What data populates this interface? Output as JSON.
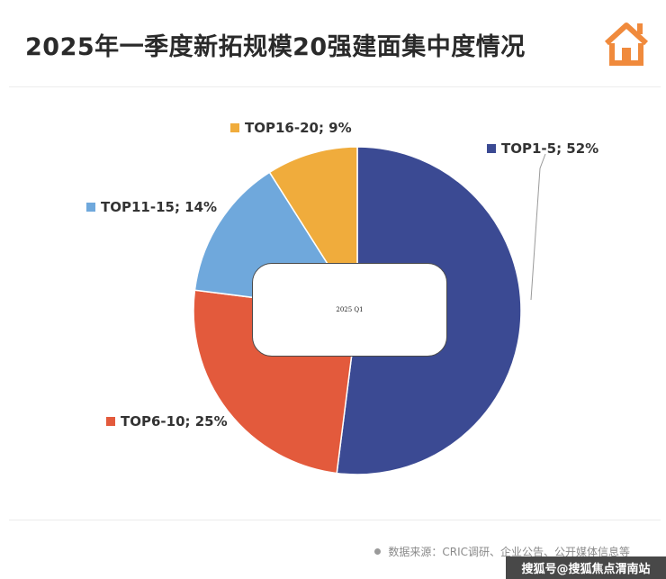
{
  "page": {
    "title": "2025年一季度新拓规模20强建面集中度情况",
    "footer": "数据来源：CRIC调研、企业公告、公开媒体信息等",
    "watermark": "搜狐号@搜狐焦点渭南站"
  },
  "colors": {
    "logo": "#f08a3c"
  },
  "chart_data": {
    "type": "pie",
    "title": "",
    "center_label": "2025 Q1",
    "unit": "%",
    "slices": [
      {
        "name": "TOP1-5",
        "value": 52,
        "label": "TOP1-5; 52%",
        "color": "#3b4a93"
      },
      {
        "name": "TOP6-10",
        "value": 25,
        "label": "TOP6-10; 25%",
        "color": "#e35a3c"
      },
      {
        "name": "TOP11-15",
        "value": 14,
        "label": "TOP11-15; 14%",
        "color": "#6fa8dc"
      },
      {
        "name": "TOP16-20",
        "value": 9,
        "label": "TOP16-20; 9%",
        "color": "#f0ac3c"
      }
    ]
  }
}
